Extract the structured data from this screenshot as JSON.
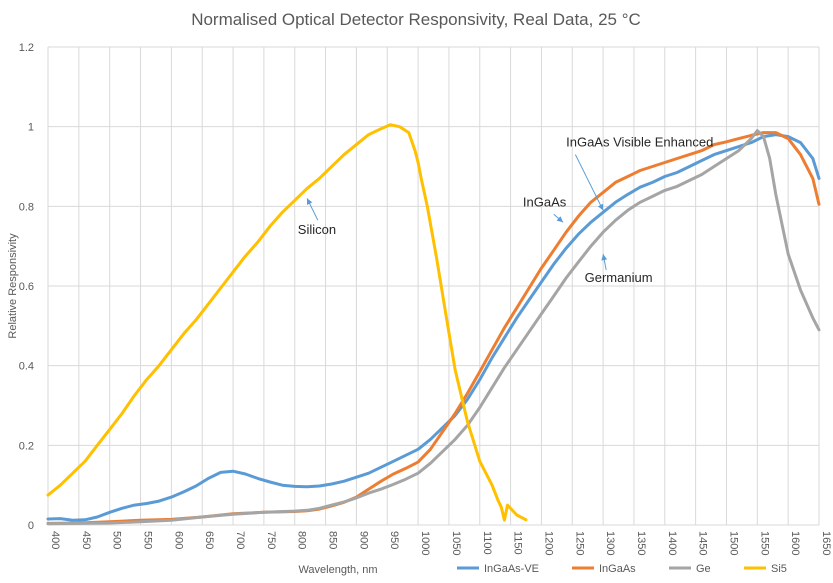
{
  "chart_data": {
    "type": "line",
    "title": "Normalised Optical Detector Responsivity, Real Data, 25 °C",
    "xlabel": "Wavelength, nm",
    "ylabel": "Relative Responsivity",
    "xlim": [
      400,
      1650
    ],
    "ylim": [
      0,
      1.2
    ],
    "x_ticks": [
      "400",
      "450",
      "500",
      "550",
      "600",
      "650",
      "700",
      "750",
      "800",
      "850",
      "900",
      "950",
      "1000",
      "1050",
      "1100",
      "1150",
      "1200",
      "1250",
      "1300",
      "1350",
      "1400",
      "1450",
      "1500",
      "1550",
      "1600",
      "1650"
    ],
    "y_ticks": [
      "0",
      "0.2",
      "0.4",
      "0.6",
      "0.8",
      "1",
      "1.2"
    ],
    "grid": true,
    "legend_position": "bottom-right",
    "series": [
      {
        "name": "InGaAs-VE",
        "color": "#5b9bd5",
        "points": [
          [
            400,
            0.015
          ],
          [
            420,
            0.016
          ],
          [
            440,
            0.012
          ],
          [
            460,
            0.013
          ],
          [
            480,
            0.02
          ],
          [
            500,
            0.032
          ],
          [
            520,
            0.042
          ],
          [
            540,
            0.05
          ],
          [
            560,
            0.054
          ],
          [
            580,
            0.06
          ],
          [
            600,
            0.07
          ],
          [
            620,
            0.083
          ],
          [
            640,
            0.098
          ],
          [
            660,
            0.117
          ],
          [
            680,
            0.132
          ],
          [
            700,
            0.135
          ],
          [
            720,
            0.128
          ],
          [
            740,
            0.117
          ],
          [
            760,
            0.108
          ],
          [
            780,
            0.1
          ],
          [
            800,
            0.097
          ],
          [
            820,
            0.096
          ],
          [
            840,
            0.098
          ],
          [
            860,
            0.103
          ],
          [
            880,
            0.11
          ],
          [
            900,
            0.12
          ],
          [
            920,
            0.13
          ],
          [
            940,
            0.145
          ],
          [
            960,
            0.16
          ],
          [
            980,
            0.175
          ],
          [
            1000,
            0.19
          ],
          [
            1020,
            0.215
          ],
          [
            1040,
            0.245
          ],
          [
            1060,
            0.275
          ],
          [
            1080,
            0.315
          ],
          [
            1100,
            0.365
          ],
          [
            1120,
            0.42
          ],
          [
            1140,
            0.47
          ],
          [
            1160,
            0.52
          ],
          [
            1180,
            0.565
          ],
          [
            1200,
            0.61
          ],
          [
            1220,
            0.655
          ],
          [
            1240,
            0.695
          ],
          [
            1260,
            0.73
          ],
          [
            1280,
            0.76
          ],
          [
            1300,
            0.785
          ],
          [
            1320,
            0.81
          ],
          [
            1340,
            0.83
          ],
          [
            1360,
            0.848
          ],
          [
            1380,
            0.86
          ],
          [
            1400,
            0.875
          ],
          [
            1420,
            0.885
          ],
          [
            1440,
            0.9
          ],
          [
            1460,
            0.915
          ],
          [
            1480,
            0.93
          ],
          [
            1500,
            0.94
          ],
          [
            1520,
            0.95
          ],
          [
            1540,
            0.96
          ],
          [
            1560,
            0.975
          ],
          [
            1580,
            0.98
          ],
          [
            1600,
            0.975
          ],
          [
            1620,
            0.96
          ],
          [
            1640,
            0.92
          ],
          [
            1650,
            0.87
          ]
        ]
      },
      {
        "name": "InGaAs",
        "color": "#ed7d31",
        "points": [
          [
            400,
            0.004
          ],
          [
            450,
            0.005
          ],
          [
            500,
            0.008
          ],
          [
            550,
            0.012
          ],
          [
            600,
            0.014
          ],
          [
            650,
            0.02
          ],
          [
            700,
            0.028
          ],
          [
            750,
            0.032
          ],
          [
            800,
            0.034
          ],
          [
            820,
            0.036
          ],
          [
            840,
            0.04
          ],
          [
            860,
            0.048
          ],
          [
            880,
            0.057
          ],
          [
            900,
            0.07
          ],
          [
            920,
            0.09
          ],
          [
            940,
            0.11
          ],
          [
            960,
            0.128
          ],
          [
            980,
            0.142
          ],
          [
            1000,
            0.158
          ],
          [
            1020,
            0.19
          ],
          [
            1040,
            0.235
          ],
          [
            1060,
            0.28
          ],
          [
            1080,
            0.33
          ],
          [
            1100,
            0.385
          ],
          [
            1120,
            0.44
          ],
          [
            1140,
            0.495
          ],
          [
            1160,
            0.545
          ],
          [
            1180,
            0.595
          ],
          [
            1200,
            0.645
          ],
          [
            1220,
            0.69
          ],
          [
            1240,
            0.735
          ],
          [
            1260,
            0.775
          ],
          [
            1280,
            0.81
          ],
          [
            1300,
            0.835
          ],
          [
            1320,
            0.86
          ],
          [
            1340,
            0.875
          ],
          [
            1360,
            0.89
          ],
          [
            1380,
            0.9
          ],
          [
            1400,
            0.91
          ],
          [
            1420,
            0.92
          ],
          [
            1440,
            0.93
          ],
          [
            1460,
            0.94
          ],
          [
            1480,
            0.955
          ],
          [
            1500,
            0.962
          ],
          [
            1520,
            0.97
          ],
          [
            1540,
            0.978
          ],
          [
            1560,
            0.985
          ],
          [
            1580,
            0.985
          ],
          [
            1600,
            0.97
          ],
          [
            1620,
            0.93
          ],
          [
            1640,
            0.87
          ],
          [
            1650,
            0.805
          ]
        ]
      },
      {
        "name": "Ge",
        "color": "#a5a5a5",
        "points": [
          [
            400,
            0.003
          ],
          [
            450,
            0.004
          ],
          [
            500,
            0.005
          ],
          [
            550,
            0.008
          ],
          [
            600,
            0.012
          ],
          [
            650,
            0.02
          ],
          [
            700,
            0.027
          ],
          [
            750,
            0.032
          ],
          [
            800,
            0.035
          ],
          [
            820,
            0.037
          ],
          [
            840,
            0.042
          ],
          [
            860,
            0.05
          ],
          [
            880,
            0.058
          ],
          [
            900,
            0.068
          ],
          [
            920,
            0.08
          ],
          [
            940,
            0.09
          ],
          [
            960,
            0.102
          ],
          [
            980,
            0.115
          ],
          [
            1000,
            0.13
          ],
          [
            1020,
            0.155
          ],
          [
            1040,
            0.185
          ],
          [
            1060,
            0.215
          ],
          [
            1080,
            0.25
          ],
          [
            1100,
            0.295
          ],
          [
            1120,
            0.345
          ],
          [
            1140,
            0.395
          ],
          [
            1160,
            0.44
          ],
          [
            1180,
            0.485
          ],
          [
            1200,
            0.53
          ],
          [
            1220,
            0.575
          ],
          [
            1240,
            0.62
          ],
          [
            1260,
            0.66
          ],
          [
            1280,
            0.7
          ],
          [
            1300,
            0.735
          ],
          [
            1320,
            0.765
          ],
          [
            1340,
            0.79
          ],
          [
            1360,
            0.81
          ],
          [
            1380,
            0.825
          ],
          [
            1400,
            0.84
          ],
          [
            1420,
            0.85
          ],
          [
            1440,
            0.865
          ],
          [
            1460,
            0.88
          ],
          [
            1480,
            0.9
          ],
          [
            1500,
            0.92
          ],
          [
            1520,
            0.94
          ],
          [
            1540,
            0.97
          ],
          [
            1550,
            0.99
          ],
          [
            1560,
            0.975
          ],
          [
            1570,
            0.92
          ],
          [
            1580,
            0.83
          ],
          [
            1600,
            0.68
          ],
          [
            1620,
            0.59
          ],
          [
            1640,
            0.52
          ],
          [
            1650,
            0.49
          ]
        ]
      },
      {
        "name": "Si5",
        "color": "#ffc000",
        "points": [
          [
            400,
            0.075
          ],
          [
            420,
            0.1
          ],
          [
            440,
            0.13
          ],
          [
            460,
            0.16
          ],
          [
            480,
            0.2
          ],
          [
            500,
            0.24
          ],
          [
            520,
            0.28
          ],
          [
            540,
            0.325
          ],
          [
            560,
            0.365
          ],
          [
            580,
            0.4
          ],
          [
            600,
            0.44
          ],
          [
            620,
            0.48
          ],
          [
            640,
            0.515
          ],
          [
            660,
            0.555
          ],
          [
            680,
            0.595
          ],
          [
            700,
            0.635
          ],
          [
            720,
            0.675
          ],
          [
            740,
            0.71
          ],
          [
            760,
            0.75
          ],
          [
            780,
            0.785
          ],
          [
            800,
            0.815
          ],
          [
            820,
            0.845
          ],
          [
            840,
            0.87
          ],
          [
            860,
            0.9
          ],
          [
            880,
            0.93
          ],
          [
            900,
            0.955
          ],
          [
            920,
            0.98
          ],
          [
            940,
            0.995
          ],
          [
            955,
            1.005
          ],
          [
            970,
            1.0
          ],
          [
            985,
            0.985
          ],
          [
            995,
            0.94
          ],
          [
            1000,
            0.91
          ],
          [
            1005,
            0.87
          ],
          [
            1015,
            0.8
          ],
          [
            1030,
            0.67
          ],
          [
            1045,
            0.53
          ],
          [
            1060,
            0.39
          ],
          [
            1080,
            0.26
          ],
          [
            1100,
            0.16
          ],
          [
            1120,
            0.1
          ],
          [
            1130,
            0.06
          ],
          [
            1135,
            0.045
          ],
          [
            1140,
            0.012
          ],
          [
            1145,
            0.05
          ],
          [
            1160,
            0.025
          ],
          [
            1175,
            0.013
          ]
        ]
      }
    ],
    "annotations": [
      {
        "text": "Silicon",
        "x": 805,
        "y": 0.73,
        "arrow_to_x": 820,
        "arrow_to_y": 0.82
      },
      {
        "text": "InGaAs Visible Enhanced",
        "x": 1240,
        "y": 0.95,
        "arrow_to_x": 1300,
        "arrow_to_y": 0.79
      },
      {
        "text": "InGaAs",
        "x": 1170,
        "y": 0.8,
        "arrow_to_x": 1235,
        "arrow_to_y": 0.76
      },
      {
        "text": "Germanium",
        "x": 1270,
        "y": 0.61,
        "arrow_to_x": 1300,
        "arrow_to_y": 0.68
      }
    ]
  }
}
